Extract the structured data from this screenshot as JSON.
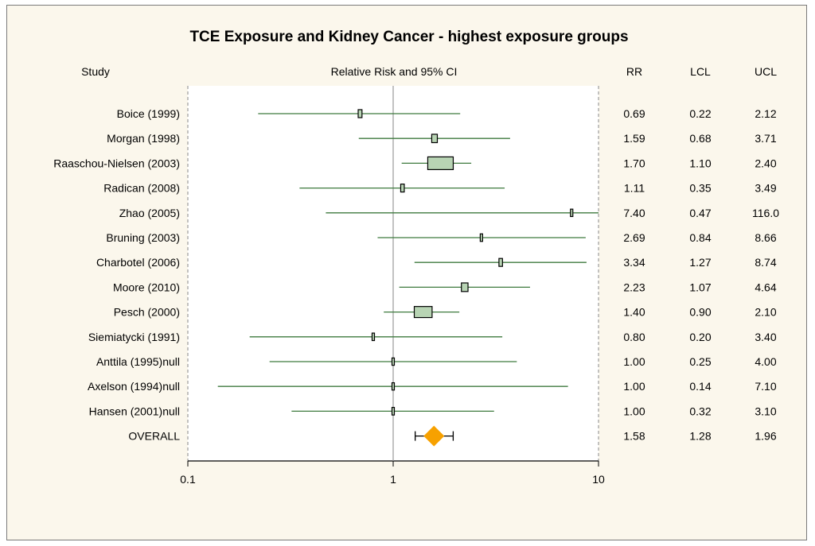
{
  "chart_data": {
    "type": "forest",
    "title": "TCE Exposure and Kidney Cancer - highest exposure groups",
    "column_headers": {
      "study": "Study",
      "plot": "Relative Risk and 95% CI",
      "rr": "RR",
      "lcl": "LCL",
      "ucl": "UCL"
    },
    "xaxis": {
      "scale": "log",
      "range": [
        0.1,
        10
      ],
      "ticks": [
        "0.1",
        "1",
        "10"
      ],
      "tick_values": [
        0.1,
        1,
        10
      ],
      "reference_line": 1
    },
    "studies": [
      {
        "label": "Boice (1999)",
        "rr": 0.69,
        "lcl": 0.22,
        "ucl": 2.12,
        "weight": 0.15,
        "rr_text": "0.69",
        "lcl_text": "0.22",
        "ucl_text": "2.12"
      },
      {
        "label": "Morgan (1998)",
        "rr": 1.59,
        "lcl": 0.68,
        "ucl": 3.71,
        "weight": 0.22,
        "rr_text": "1.59",
        "lcl_text": "0.68",
        "ucl_text": "3.71"
      },
      {
        "label": "Raaschou-Nielsen (2003)",
        "rr": 1.7,
        "lcl": 1.1,
        "ucl": 2.4,
        "weight": 1.0,
        "rr_text": "1.70",
        "lcl_text": "1.10",
        "ucl_text": "2.40"
      },
      {
        "label": "Radican (2008)",
        "rr": 1.11,
        "lcl": 0.35,
        "ucl": 3.49,
        "weight": 0.14,
        "rr_text": "1.11",
        "lcl_text": "0.35",
        "ucl_text": "3.49"
      },
      {
        "label": "Zhao (2005)",
        "rr": 7.4,
        "lcl": 0.47,
        "ucl": 116.0,
        "weight": 0.04,
        "rr_text": "7.40",
        "lcl_text": "0.47",
        "ucl_text": "116.0"
      },
      {
        "label": "Bruning (2003)",
        "rr": 2.69,
        "lcl": 0.84,
        "ucl": 8.66,
        "weight": 0.07,
        "rr_text": "2.69",
        "lcl_text": "0.84",
        "ucl_text": "8.66"
      },
      {
        "label": "Charbotel (2006)",
        "rr": 3.34,
        "lcl": 1.27,
        "ucl": 8.74,
        "weight": 0.14,
        "rr_text": "3.34",
        "lcl_text": "1.27",
        "ucl_text": "8.74"
      },
      {
        "label": "Moore (2010)",
        "rr": 2.23,
        "lcl": 1.07,
        "ucl": 4.64,
        "weight": 0.26,
        "rr_text": "2.23",
        "lcl_text": "1.07",
        "ucl_text": "4.64"
      },
      {
        "label": "Pesch (2000)",
        "rr": 1.4,
        "lcl": 0.9,
        "ucl": 2.1,
        "weight": 0.7,
        "rr_text": "1.40",
        "lcl_text": "0.90",
        "ucl_text": "2.10"
      },
      {
        "label": "Siemiatycki (1991)",
        "rr": 0.8,
        "lcl": 0.2,
        "ucl": 3.4,
        "weight": 0.06,
        "rr_text": "0.80",
        "lcl_text": "0.20",
        "ucl_text": "3.40"
      },
      {
        "label": "Anttila (1995)null",
        "rr": 1.0,
        "lcl": 0.25,
        "ucl": 4.0,
        "weight": 0.03,
        "rr_text": "1.00",
        "lcl_text": "0.25",
        "ucl_text": "4.00"
      },
      {
        "label": "Axelson (1994)null",
        "rr": 1.0,
        "lcl": 0.14,
        "ucl": 7.1,
        "weight": 0.03,
        "rr_text": "1.00",
        "lcl_text": "0.14",
        "ucl_text": "7.10"
      },
      {
        "label": "Hansen (2001)null",
        "rr": 1.0,
        "lcl": 0.32,
        "ucl": 3.1,
        "weight": 0.08,
        "rr_text": "1.00",
        "lcl_text": "0.32",
        "ucl_text": "3.10"
      }
    ],
    "overall": {
      "label": "OVERALL",
      "rr": 1.58,
      "lcl": 1.28,
      "ucl": 1.96,
      "rr_text": "1.58",
      "lcl_text": "1.28",
      "ucl_text": "1.96"
    },
    "colors": {
      "ci_line": "#3e7a3e",
      "box_fill": "#b8d4b4",
      "box_stroke": "#000000",
      "overall_marker": "#f7a100",
      "reference_line": "#9a9a9a",
      "plot_background": "#ffffff",
      "frame_background": "#fbf7ec"
    }
  }
}
